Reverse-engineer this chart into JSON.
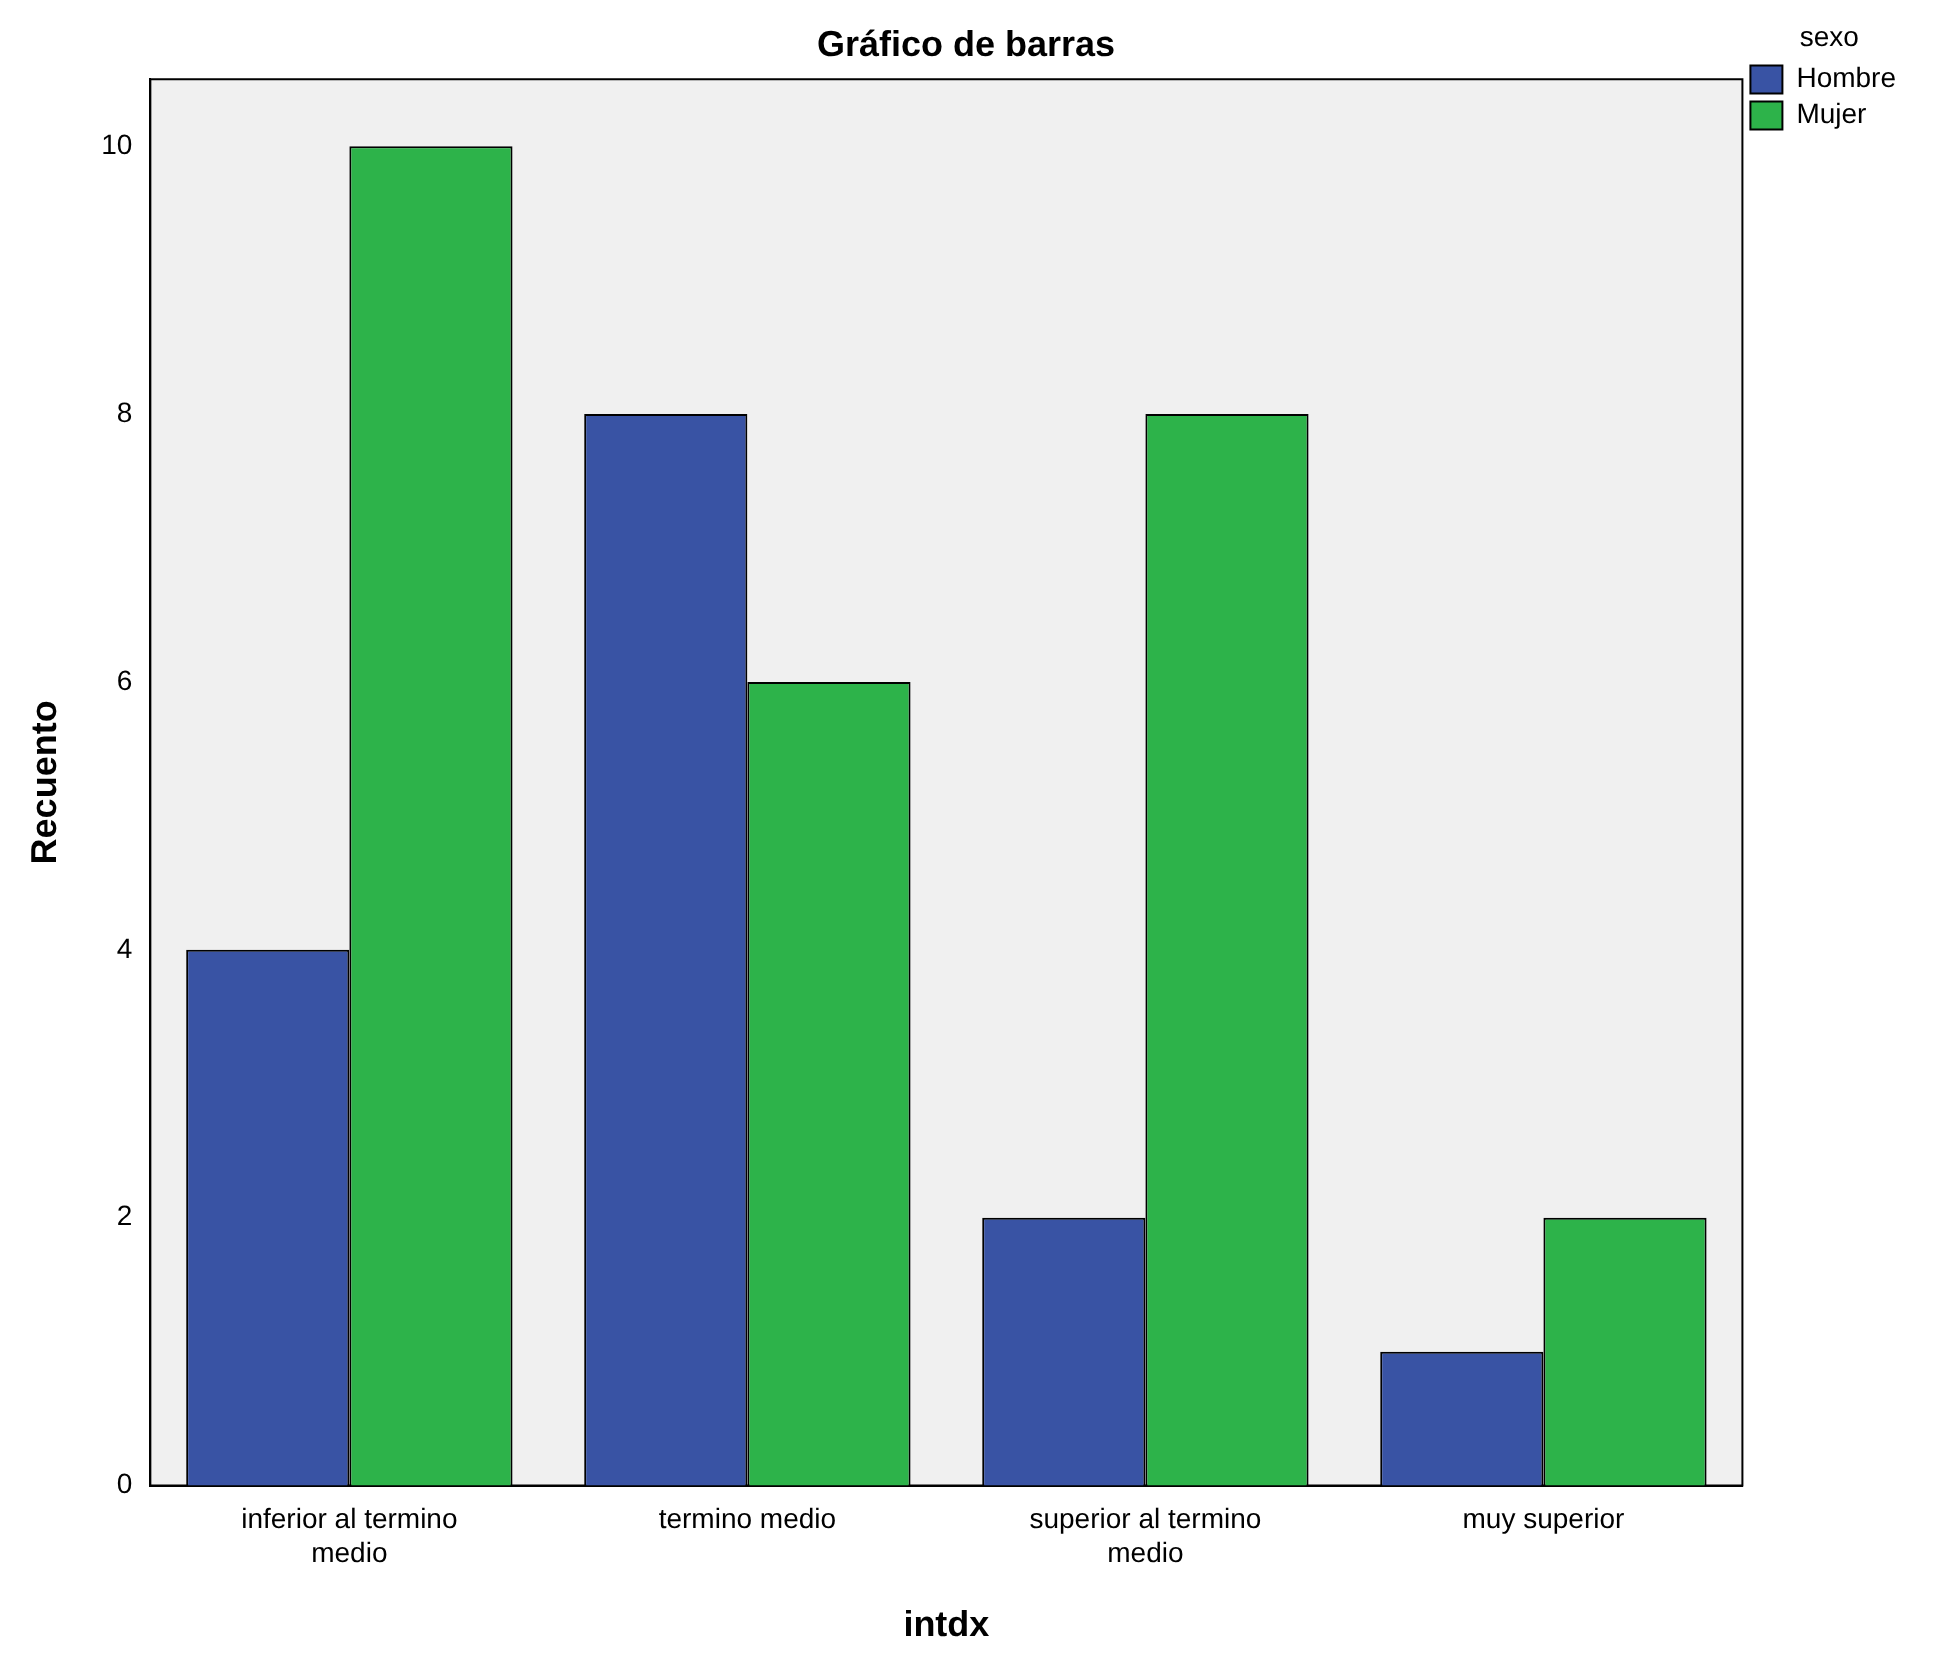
{
  "chart_data": {
    "type": "bar",
    "title": "Gráfico de barras",
    "xlabel": "intdx",
    "ylabel": "Recuento",
    "legend_title": "sexo",
    "categories": [
      "inferior al termino medio",
      "termino medio",
      "superior al termino medio",
      "muy superior"
    ],
    "series": [
      {
        "name": "Hombre",
        "color": "#3953a4",
        "values": [
          4,
          8,
          2,
          1
        ]
      },
      {
        "name": "Mujer",
        "color": "#2db34a",
        "values": [
          10,
          6,
          8,
          2
        ]
      }
    ],
    "ylim": [
      0,
      10.5
    ],
    "yticks": [
      0,
      2,
      4,
      6,
      8,
      10
    ],
    "grid": false,
    "legend": "top right"
  }
}
